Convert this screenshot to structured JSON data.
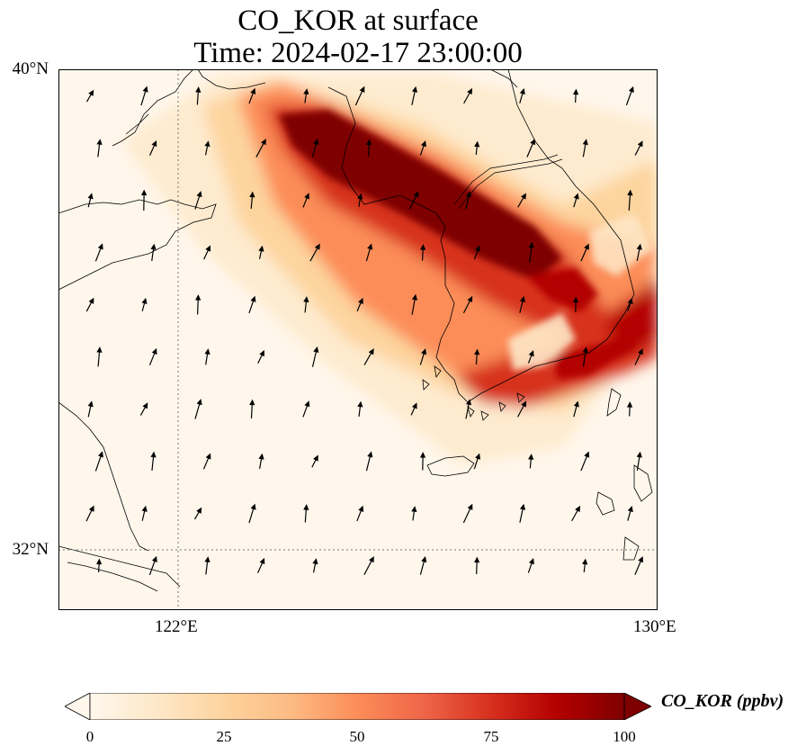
{
  "figure": {
    "title_line1": "CO_KOR at surface",
    "title_line2": "Time: 2024-02-17 23:00:00"
  },
  "map": {
    "variable": "CO_KOR",
    "level": "surface",
    "time": "2024-02-17 23:00:00",
    "extent": {
      "lon_min": 120.0,
      "lon_max": 130.0,
      "lat_min": 31.0,
      "lat_max": 40.0
    },
    "lat_labels": [
      "40°N",
      "32°N"
    ],
    "lon_labels": [
      "122°E",
      "130°E"
    ],
    "gridlines": {
      "lon": [
        122
      ],
      "lat": [
        32
      ],
      "style": "dotted"
    },
    "layers": [
      "CO concentration field",
      "coastlines",
      "wind vectors"
    ],
    "plume": {
      "description_values": "maximum (>100 ppbv) band from Bohai/NW Korea across central Korea, secondary band along southern coast",
      "max_value": 100
    }
  },
  "colorbar": {
    "label": "CO_KOR (ppbv)",
    "ticks": [
      "0",
      "25",
      "50",
      "75",
      "100"
    ],
    "min": 0,
    "max": 100,
    "colormap": "OrRd",
    "extend": "both",
    "colors": [
      "#fff7ec",
      "#fee8c8",
      "#fdd49e",
      "#fdbb84",
      "#fc8d59",
      "#ef6548",
      "#d7301f",
      "#b30000",
      "#7f0000"
    ]
  }
}
